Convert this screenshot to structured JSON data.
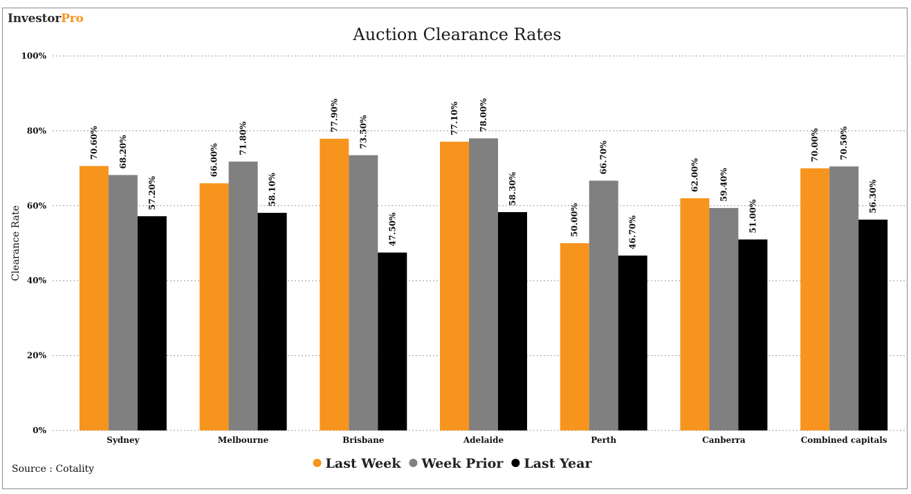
{
  "brand": {
    "part1": "Investor",
    "part2": "Pro"
  },
  "source": "Source : Cotality",
  "chart_data": {
    "type": "bar",
    "title": "Auction Clearance Rates",
    "xlabel": "",
    "ylabel": "Clearance Rate",
    "ylim": [
      0,
      100
    ],
    "yticks": [
      0,
      20,
      40,
      60,
      80,
      100
    ],
    "ytick_labels": [
      "0%",
      "20%",
      "40%",
      "60%",
      "80%",
      "100%"
    ],
    "grid": true,
    "legend_position": "bottom",
    "categories": [
      "Sydney",
      "Melbourne",
      "Brisbane",
      "Adelaide",
      "Perth",
      "Canberra",
      "Combined capitals"
    ],
    "series": [
      {
        "name": "Last Week",
        "color": "#f7941d",
        "values": [
          70.6,
          66.0,
          77.9,
          77.1,
          50.0,
          62.0,
          70.0
        ],
        "labels": [
          "70.60%",
          "66.00%",
          "77.90%",
          "77.10%",
          "50.00%",
          "62.00%",
          "70.00%"
        ]
      },
      {
        "name": "Week Prior",
        "color": "#808080",
        "values": [
          68.2,
          71.8,
          73.5,
          78.0,
          66.7,
          59.4,
          70.5
        ],
        "labels": [
          "68.20%",
          "71.80%",
          "73.50%",
          "78.00%",
          "66.70%",
          "59.40%",
          "70.50%"
        ]
      },
      {
        "name": "Last Year",
        "color": "#000000",
        "values": [
          57.2,
          58.1,
          47.5,
          58.3,
          46.7,
          51.0,
          56.3
        ],
        "labels": [
          "57.20%",
          "58.10%",
          "47.50%",
          "58.30%",
          "46.70%",
          "51.00%",
          "56.30%"
        ]
      }
    ]
  }
}
